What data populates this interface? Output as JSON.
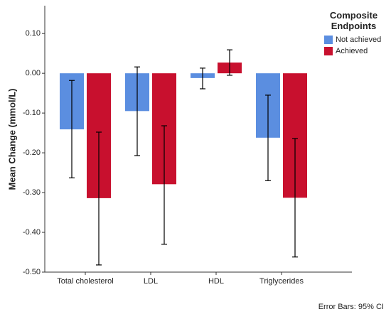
{
  "chart_data": {
    "type": "bar",
    "y_label": "Mean Change (mmol/L)",
    "categories": [
      "Total cholesterol",
      "LDL",
      "HDL",
      "Triglycerides"
    ],
    "series": [
      {
        "name": "Not achieved",
        "color": "#5b8ee0",
        "values": [
          -0.141,
          -0.095,
          -0.012,
          -0.162
        ],
        "ci_low": [
          -0.263,
          -0.207,
          -0.039,
          -0.27
        ],
        "ci_high": [
          -0.018,
          0.016,
          0.013,
          -0.055
        ]
      },
      {
        "name": "Achieved",
        "color": "#c8102e",
        "values": [
          -0.314,
          -0.279,
          0.027,
          -0.313
        ],
        "ci_low": [
          -0.482,
          -0.43,
          -0.005,
          -0.462
        ],
        "ci_high": [
          -0.148,
          -0.132,
          0.059,
          -0.164
        ]
      }
    ],
    "ylim": [
      -0.5,
      0.17
    ],
    "yticks": [
      {
        "value": 0.1,
        "label": "0.10"
      },
      {
        "value": 0,
        "label": "0.00"
      },
      {
        "value": -0.1,
        "label": "-0.10"
      },
      {
        "value": -0.2,
        "label": "-0.20"
      },
      {
        "value": -0.3,
        "label": "-0.30"
      },
      {
        "value": -0.4,
        "label": "-0.40"
      },
      {
        "value": -0.5,
        "label": "-0.50"
      }
    ],
    "legend_title": "Composite Endpoints",
    "legend_position": "upper right",
    "note": "Error Bars: 95% CI"
  }
}
